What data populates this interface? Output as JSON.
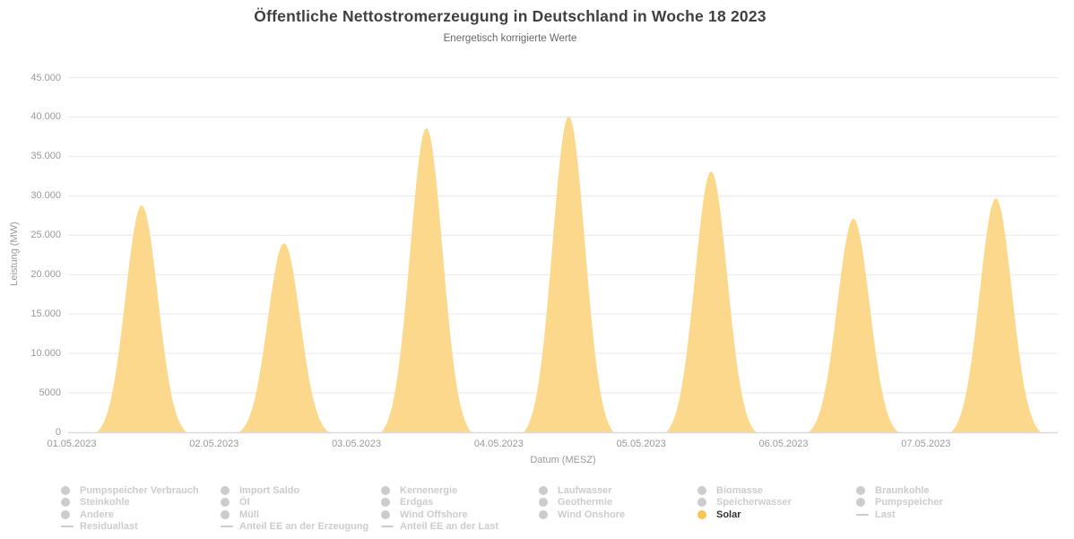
{
  "chart_data": {
    "type": "area",
    "title": "Öffentliche Nettostromerzeugung in Deutschland in Woche 18 2023",
    "subtitle": "Energetisch korrigierte Werte",
    "xlabel": "Datum (MESZ)",
    "ylabel": "Leistung (MW)",
    "ylim": [
      0,
      45000
    ],
    "grid": true,
    "legend_position": "bottom",
    "x_tick_labels": [
      "01.05.2023",
      "02.05.2023",
      "03.05.2023",
      "04.05.2023",
      "05.05.2023",
      "06.05.2023",
      "07.05.2023"
    ],
    "y_ticks": [
      {
        "value": 0,
        "label": "0"
      },
      {
        "value": 5000,
        "label": "5000"
      },
      {
        "value": 10000,
        "label": "10.000"
      },
      {
        "value": 15000,
        "label": "15.000"
      },
      {
        "value": 20000,
        "label": "20.000"
      },
      {
        "value": 25000,
        "label": "25.000"
      },
      {
        "value": 30000,
        "label": "30.000"
      },
      {
        "value": 35000,
        "label": "35.000"
      },
      {
        "value": 40000,
        "label": "40.000"
      },
      {
        "value": 45000,
        "label": "45.000"
      }
    ],
    "series": [
      {
        "name": "Solar",
        "type": "area",
        "note": "Daily bell-shaped solar generation curves, zero at night, one peak per day",
        "dates": [
          "01.05.2023",
          "02.05.2023",
          "03.05.2023",
          "04.05.2023",
          "05.05.2023",
          "06.05.2023",
          "07.05.2023"
        ],
        "daily_peaks_mw": [
          28800,
          24000,
          38600,
          40100,
          33100,
          27100,
          29700
        ]
      }
    ]
  },
  "legend": {
    "columns": [
      [
        {
          "label": "Pumpspeicher Verbrauch",
          "marker": "circle",
          "active": false
        },
        {
          "label": "Steinkohle",
          "marker": "circle",
          "active": false
        },
        {
          "label": "Andere",
          "marker": "circle",
          "active": false
        },
        {
          "label": "Residuallast",
          "marker": "line",
          "active": false
        }
      ],
      [
        {
          "label": "Import Saldo",
          "marker": "circle",
          "active": false
        },
        {
          "label": "Öl",
          "marker": "circle",
          "active": false
        },
        {
          "label": "Müll",
          "marker": "circle",
          "active": false
        },
        {
          "label": "Anteil EE an der Erzeugung",
          "marker": "line",
          "active": false
        }
      ],
      [
        {
          "label": "Kernenergie",
          "marker": "circle",
          "active": false
        },
        {
          "label": "Erdgas",
          "marker": "circle",
          "active": false
        },
        {
          "label": "Wind Offshore",
          "marker": "circle",
          "active": false
        },
        {
          "label": "Anteil EE an der Last",
          "marker": "line",
          "active": false
        }
      ],
      [
        {
          "label": "Laufwasser",
          "marker": "circle",
          "active": false
        },
        {
          "label": "Geothermie",
          "marker": "circle",
          "active": false
        },
        {
          "label": "Wind Onshore",
          "marker": "circle",
          "active": false
        }
      ],
      [
        {
          "label": "Biomasse",
          "marker": "circle",
          "active": false
        },
        {
          "label": "Speicherwasser",
          "marker": "circle",
          "active": false
        },
        {
          "label": "Solar",
          "marker": "circle",
          "active": true
        }
      ],
      [
        {
          "label": "Braunkohle",
          "marker": "circle",
          "active": false
        },
        {
          "label": "Pumpspeicher",
          "marker": "circle",
          "active": false
        },
        {
          "label": "Last",
          "marker": "line",
          "active": false
        }
      ]
    ]
  },
  "colors": {
    "background": "#ffffff",
    "title": "#404040",
    "subtitle": "#666666",
    "tick_label": "#999999",
    "grid_line": "#e9e9e9",
    "axis_line": "#d9d9d9",
    "solar_fill": "#fbd88c",
    "solar_marker": "#fac453",
    "legend_inactive": "#cccccc",
    "legend_active_text": "#333333"
  }
}
